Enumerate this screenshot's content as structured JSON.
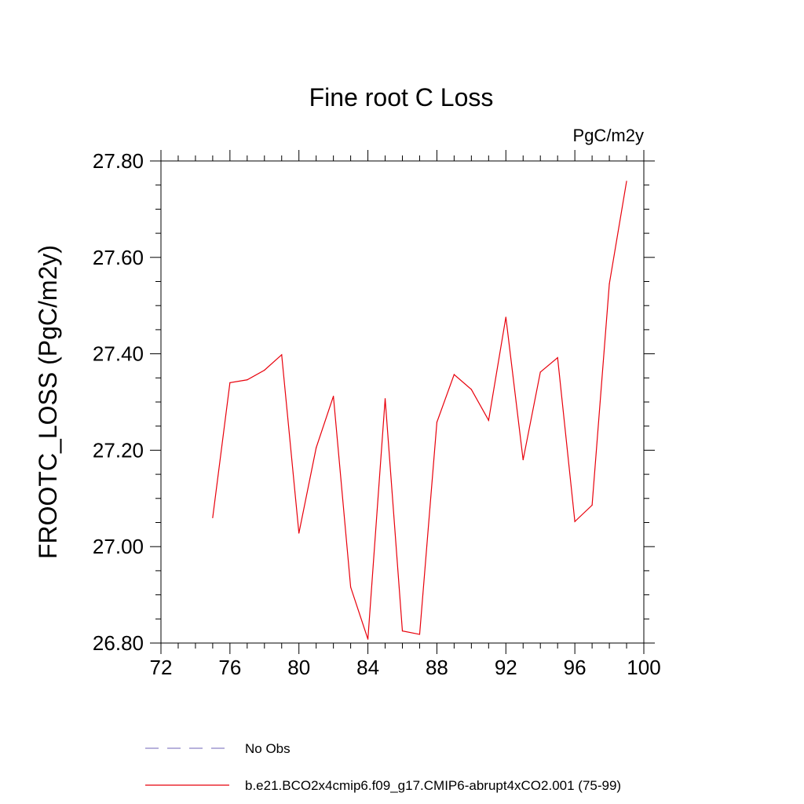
{
  "chart_data": {
    "type": "line",
    "title": "Fine root C Loss",
    "units_label": "PgC/m2y",
    "ylabel": "FROOTC_LOSS  (PgC/m2y)",
    "xlabel": "",
    "xlim": [
      72,
      100
    ],
    "ylim": [
      26.8,
      27.8
    ],
    "xticks": [
      72,
      76,
      80,
      84,
      88,
      92,
      96,
      100
    ],
    "xtick_labels": [
      "72",
      "76",
      "80",
      "84",
      "88",
      "92",
      "96",
      "100"
    ],
    "yticks": [
      26.8,
      27.0,
      27.2,
      27.4,
      27.6,
      27.8
    ],
    "ytick_labels": [
      "26.80",
      "27.00",
      "27.20",
      "27.40",
      "27.60",
      "27.80"
    ],
    "grid": false,
    "legend_position": "bottom-center",
    "legend": [
      {
        "label": "No Obs",
        "style": "dashed",
        "color": "#8c82c8"
      },
      {
        "label": "b.e21.BCO2x4cmip6.f09_g17.CMIP6-abrupt4xCO2.001 (75-99)",
        "style": "solid",
        "color": "#e8000b"
      }
    ],
    "series": [
      {
        "name": "b.e21.BCO2x4cmip6.f09_g17.CMIP6-abrupt4xCO2.001 (75-99)",
        "color": "#e8000b",
        "x": [
          75,
          76,
          77,
          78,
          79,
          80,
          81,
          82,
          83,
          84,
          85,
          86,
          87,
          88,
          89,
          90,
          91,
          92,
          93,
          94,
          95,
          96,
          97,
          98,
          99
        ],
        "values": [
          27.06,
          27.34,
          27.346,
          27.366,
          27.398,
          27.028,
          27.205,
          27.312,
          26.916,
          26.808,
          27.307,
          26.825,
          26.818,
          27.258,
          27.357,
          27.326,
          27.262,
          27.476,
          27.18,
          27.362,
          27.392,
          27.052,
          27.086,
          27.545,
          27.758
        ]
      }
    ]
  }
}
